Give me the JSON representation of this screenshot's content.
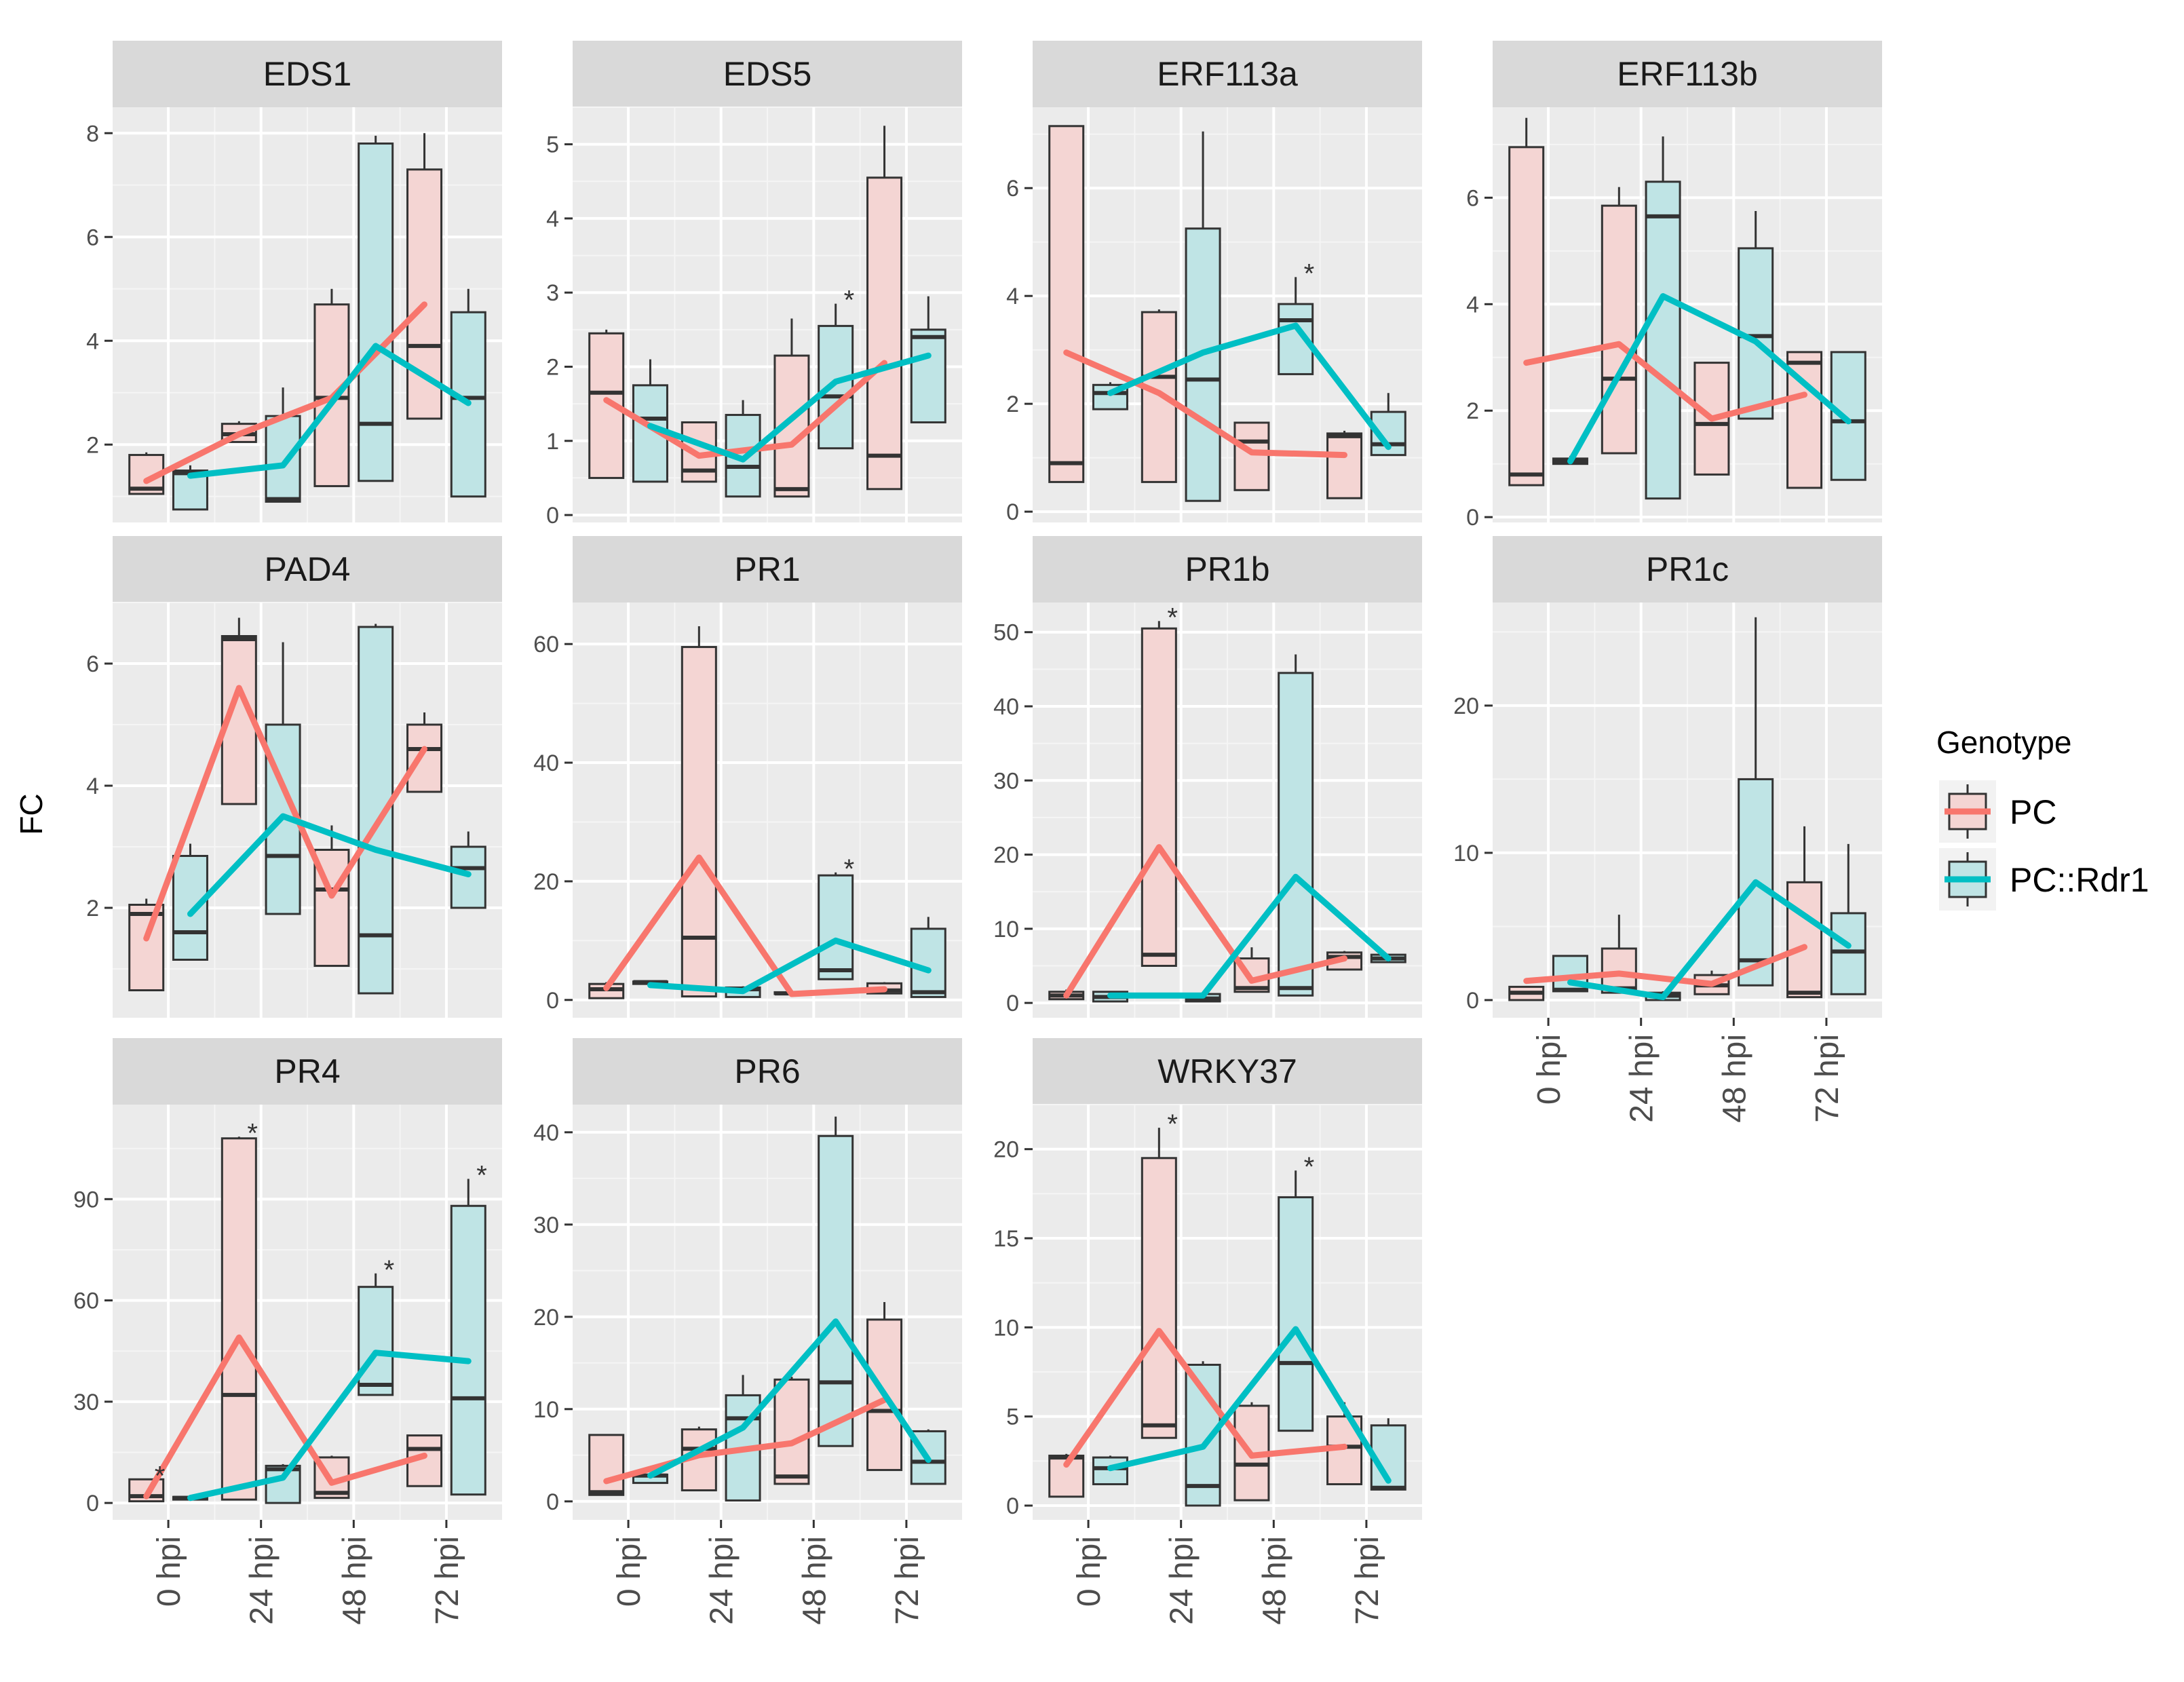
{
  "chart_data": {
    "type": "box",
    "ylabel": "FC",
    "categories": [
      "0 hpi",
      "24 hpi",
      "48 hpi",
      "72 hpi"
    ],
    "legend": {
      "title": "Genotype",
      "placement": "right",
      "entries": [
        {
          "name": "PC",
          "line_color": "#F8766D",
          "fill_color": "#F4D5D3"
        },
        {
          "name": "PC::Rdr1",
          "line_color": "#00BFC4",
          "fill_color": "#BFE4E5"
        }
      ]
    },
    "panels": [
      {
        "title": "EDS1",
        "ylim": [
          0.5,
          8.5
        ],
        "yticks": [
          2,
          4,
          6,
          8
        ],
        "series": [
          {
            "name": "PC",
            "mean": [
              1.3,
              2.2,
              2.9,
              4.7
            ],
            "boxes": [
              [
                1.05,
                1.15,
                1.8,
                1.85
              ],
              [
                2.05,
                2.2,
                2.4,
                2.45
              ],
              [
                1.2,
                2.9,
                4.7,
                5.0
              ],
              [
                2.5,
                3.9,
                7.3,
                8.0
              ]
            ]
          },
          {
            "name": "PC::Rdr1",
            "mean": [
              1.4,
              1.6,
              3.9,
              2.8
            ],
            "boxes": [
              [
                0.75,
                1.45,
                1.5,
                1.6
              ],
              [
                0.9,
                0.95,
                2.55,
                3.1
              ],
              [
                1.3,
                2.4,
                7.8,
                7.95
              ],
              [
                1.0,
                2.9,
                4.55,
                5.0
              ]
            ]
          }
        ],
        "stars": []
      },
      {
        "title": "EDS5",
        "ylim": [
          -0.1,
          5.5
        ],
        "yticks": [
          0,
          1,
          2,
          3,
          4,
          5
        ],
        "series": [
          {
            "name": "PC",
            "mean": [
              1.55,
              0.8,
              0.95,
              2.05
            ],
            "boxes": [
              [
                0.5,
                1.65,
                2.45,
                2.5
              ],
              [
                0.45,
                0.6,
                1.25,
                1.25
              ],
              [
                0.25,
                0.35,
                2.15,
                2.65
              ],
              [
                0.35,
                0.8,
                4.55,
                5.25
              ]
            ]
          },
          {
            "name": "PC::Rdr1",
            "mean": [
              1.2,
              0.75,
              1.8,
              2.15
            ],
            "boxes": [
              [
                0.45,
                1.3,
                1.75,
                2.1
              ],
              [
                0.25,
                0.65,
                1.35,
                1.55
              ],
              [
                0.9,
                1.6,
                2.55,
                2.85
              ],
              [
                1.25,
                2.4,
                2.5,
                2.95
              ]
            ]
          }
        ],
        "stars": [
          {
            "series": "PC::Rdr1",
            "category": "48 hpi",
            "text": "*"
          }
        ]
      },
      {
        "title": "ERF113a",
        "ylim": [
          -0.2,
          7.5
        ],
        "yticks": [
          0,
          2,
          4,
          6
        ],
        "series": [
          {
            "name": "PC",
            "mean": [
              2.95,
              2.2,
              1.1,
              1.05
            ],
            "boxes": [
              [
                0.55,
                0.9,
                7.15,
                7.15
              ],
              [
                0.55,
                2.5,
                3.7,
                3.75
              ],
              [
                0.4,
                1.3,
                1.65,
                1.65
              ],
              [
                0.25,
                1.4,
                1.45,
                1.5
              ]
            ]
          },
          {
            "name": "PC::Rdr1",
            "mean": [
              2.2,
              2.95,
              3.45,
              1.2
            ],
            "boxes": [
              [
                1.9,
                2.2,
                2.35,
                2.4
              ],
              [
                0.2,
                2.45,
                5.25,
                7.05
              ],
              [
                2.55,
                3.55,
                3.85,
                4.35
              ],
              [
                1.05,
                1.25,
                1.85,
                2.2
              ]
            ]
          }
        ],
        "stars": [
          {
            "series": "PC::Rdr1",
            "category": "48 hpi",
            "text": "*"
          }
        ]
      },
      {
        "title": "ERF113b",
        "ylim": [
          -0.1,
          7.7
        ],
        "yticks": [
          0,
          2,
          4,
          6
        ],
        "series": [
          {
            "name": "PC",
            "mean": [
              2.9,
              3.25,
              1.85,
              2.3
            ],
            "boxes": [
              [
                0.6,
                0.8,
                6.95,
                7.5
              ],
              [
                1.2,
                2.6,
                5.85,
                6.2
              ],
              [
                0.8,
                1.75,
                2.9,
                2.9
              ],
              [
                0.55,
                2.9,
                3.1,
                3.1
              ]
            ]
          },
          {
            "name": "PC::Rdr1",
            "mean": [
              1.05,
              4.15,
              3.3,
              1.8
            ],
            "boxes": [
              [
                1.0,
                1.05,
                1.1,
                1.15
              ],
              [
                0.35,
                5.65,
                6.3,
                7.15
              ],
              [
                1.85,
                3.4,
                5.05,
                5.75
              ],
              [
                0.7,
                1.8,
                3.1,
                3.1
              ]
            ]
          }
        ],
        "stars": []
      },
      {
        "title": "PAD4",
        "ylim": [
          0.2,
          7.0
        ],
        "yticks": [
          2,
          4,
          6
        ],
        "series": [
          {
            "name": "PC",
            "mean": [
              1.5,
              5.6,
              2.2,
              4.6
            ],
            "boxes": [
              [
                0.65,
                1.9,
                2.05,
                2.15
              ],
              [
                3.7,
                6.4,
                6.45,
                6.75
              ],
              [
                1.05,
                2.3,
                2.95,
                3.35
              ],
              [
                3.9,
                4.6,
                5.0,
                5.2
              ]
            ]
          },
          {
            "name": "PC::Rdr1",
            "mean": [
              1.9,
              3.5,
              2.95,
              2.55
            ],
            "boxes": [
              [
                1.15,
                1.6,
                2.85,
                3.05
              ],
              [
                1.9,
                2.85,
                5.0,
                6.35
              ],
              [
                0.6,
                1.55,
                6.6,
                6.65
              ],
              [
                2.0,
                2.65,
                3.0,
                3.25
              ]
            ]
          }
        ],
        "stars": []
      },
      {
        "title": "PR1",
        "ylim": [
          -3,
          67
        ],
        "yticks": [
          0,
          20,
          40,
          60
        ],
        "series": [
          {
            "name": "PC",
            "mean": [
              2.0,
              24.0,
              1.0,
              1.8
            ],
            "boxes": [
              [
                0.3,
                1.8,
                2.7,
                3.0
              ],
              [
                0.6,
                10.5,
                59.5,
                63.0
              ],
              [
                1.0,
                1.1,
                1.3,
                1.5
              ],
              [
                1.1,
                1.6,
                2.8,
                3.0
              ]
            ]
          },
          {
            "name": "PC::Rdr1",
            "mean": [
              2.5,
              1.5,
              10.0,
              5.0
            ],
            "boxes": [
              [
                2.7,
                3.0,
                3.1,
                3.3
              ],
              [
                0.5,
                1.8,
                2.1,
                2.3
              ],
              [
                3.5,
                5.0,
                21.0,
                21.5
              ],
              [
                0.5,
                1.3,
                12.0,
                14.0
              ]
            ]
          }
        ],
        "stars": [
          {
            "series": "PC::Rdr1",
            "category": "48 hpi",
            "text": "*"
          }
        ]
      },
      {
        "title": "PR1b",
        "ylim": [
          -2,
          54
        ],
        "yticks": [
          0,
          10,
          20,
          30,
          40,
          50
        ],
        "series": [
          {
            "name": "PC",
            "mean": [
              1.0,
              21.0,
              3.0,
              6.0
            ],
            "boxes": [
              [
                0.5,
                1.0,
                1.5,
                1.8
              ],
              [
                5.0,
                6.5,
                50.5,
                51.5
              ],
              [
                1.5,
                2.0,
                6.0,
                7.5
              ],
              [
                4.5,
                6.2,
                6.8,
                7.0
              ]
            ]
          },
          {
            "name": "PC::Rdr1",
            "mean": [
              1.0,
              1.0,
              17.0,
              6.0
            ],
            "boxes": [
              [
                0.2,
                0.8,
                1.5,
                1.6
              ],
              [
                0.2,
                0.6,
                1.2,
                1.5
              ],
              [
                1.0,
                2.0,
                44.5,
                47.0
              ],
              [
                5.5,
                6.0,
                6.5,
                6.6
              ]
            ]
          }
        ],
        "stars": [
          {
            "series": "PC",
            "category": "24 hpi",
            "text": "*"
          }
        ]
      },
      {
        "title": "PR1c",
        "ylim": [
          -1.2,
          27
        ],
        "yticks": [
          0,
          10,
          20
        ],
        "series": [
          {
            "name": "PC",
            "mean": [
              1.3,
              1.8,
              1.1,
              3.6
            ],
            "boxes": [
              [
                0.0,
                0.5,
                0.9,
                0.95
              ],
              [
                0.5,
                0.8,
                3.5,
                5.8
              ],
              [
                0.4,
                1.0,
                1.7,
                2.0
              ],
              [
                0.2,
                0.5,
                8.0,
                11.8
              ]
            ]
          },
          {
            "name": "PC::Rdr1",
            "mean": [
              1.2,
              0.2,
              8.0,
              3.7
            ],
            "boxes": [
              [
                0.6,
                0.7,
                3.0,
                3.0
              ],
              [
                0.0,
                0.3,
                0.5,
                0.6
              ],
              [
                1.0,
                2.7,
                15.0,
                26.0
              ],
              [
                0.4,
                3.3,
                5.9,
                10.6
              ]
            ]
          }
        ],
        "stars": []
      },
      {
        "title": "PR4",
        "ylim": [
          -5,
          118
        ],
        "yticks": [
          0,
          30,
          60,
          90
        ],
        "series": [
          {
            "name": "PC",
            "mean": [
              2.0,
              49.0,
              6.0,
              14.0
            ],
            "boxes": [
              [
                0.5,
                2.0,
                7.0,
                7.0
              ],
              [
                1.0,
                32.0,
                108.0,
                108.5
              ],
              [
                1.5,
                3.0,
                13.5,
                14.0
              ],
              [
                5.0,
                16.0,
                20.0,
                20.0
              ]
            ]
          },
          {
            "name": "PC::Rdr1",
            "mean": [
              1.5,
              7.5,
              44.5,
              42.0
            ],
            "boxes": [
              [
                1.0,
                1.5,
                1.8,
                2.0
              ],
              [
                0.0,
                10.0,
                11.0,
                11.5
              ],
              [
                32.0,
                35.0,
                64.0,
                68.0
              ],
              [
                2.5,
                31.0,
                88.0,
                96.0
              ]
            ]
          }
        ],
        "stars": [
          {
            "series": "PC",
            "category": "0 hpi",
            "text": "*"
          },
          {
            "series": "PC",
            "category": "24 hpi",
            "text": "*"
          },
          {
            "series": "PC::Rdr1",
            "category": "48 hpi",
            "text": "*"
          },
          {
            "series": "PC::Rdr1",
            "category": "72 hpi",
            "text": "*"
          }
        ]
      },
      {
        "title": "PR6",
        "ylim": [
          -2,
          43
        ],
        "yticks": [
          0,
          10,
          20,
          30,
          40
        ],
        "series": [
          {
            "name": "PC",
            "mean": [
              2.2,
              5.0,
              6.3,
              11.0
            ],
            "boxes": [
              [
                0.7,
                1.0,
                7.2,
                7.3
              ],
              [
                1.2,
                5.7,
                7.8,
                8.1
              ],
              [
                1.9,
                2.7,
                13.2,
                13.5
              ],
              [
                3.4,
                9.8,
                19.7,
                21.6
              ]
            ]
          },
          {
            "name": "PC::Rdr1",
            "mean": [
              2.8,
              8.0,
              19.5,
              4.5
            ],
            "boxes": [
              [
                2.0,
                2.8,
                2.9,
                3.0
              ],
              [
                0.1,
                9.0,
                11.5,
                13.7
              ],
              [
                6.0,
                12.9,
                39.6,
                41.7
              ],
              [
                1.9,
                4.3,
                7.6,
                7.8
              ]
            ]
          }
        ],
        "stars": []
      },
      {
        "title": "WRKY37",
        "ylim": [
          -0.8,
          22.5
        ],
        "yticks": [
          0,
          5,
          10,
          15,
          20
        ],
        "series": [
          {
            "name": "PC",
            "mean": [
              2.3,
              9.8,
              2.8,
              3.3
            ],
            "boxes": [
              [
                0.5,
                2.7,
                2.8,
                2.9
              ],
              [
                3.8,
                4.5,
                19.5,
                21.2
              ],
              [
                0.3,
                2.3,
                5.6,
                5.8
              ],
              [
                1.2,
                3.3,
                5.0,
                5.8
              ]
            ]
          },
          {
            "name": "PC::Rdr1",
            "mean": [
              2.1,
              3.3,
              9.9,
              1.4
            ],
            "boxes": [
              [
                1.2,
                2.1,
                2.7,
                2.8
              ],
              [
                0.0,
                1.1,
                7.9,
                8.1
              ],
              [
                4.2,
                8.0,
                17.3,
                18.8
              ],
              [
                0.9,
                1.0,
                4.5,
                4.9
              ]
            ]
          }
        ],
        "stars": [
          {
            "series": "PC",
            "category": "24 hpi",
            "text": "*"
          },
          {
            "series": "PC::Rdr1",
            "category": "48 hpi",
            "text": "*"
          }
        ]
      }
    ]
  }
}
